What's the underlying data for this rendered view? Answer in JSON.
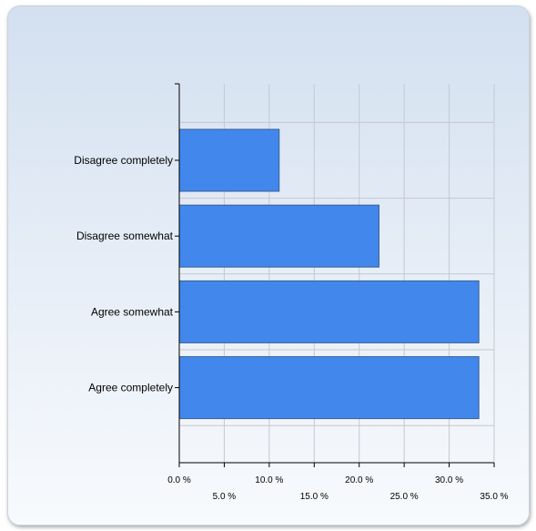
{
  "chart_data": {
    "type": "bar",
    "orientation": "horizontal",
    "categories": [
      "Disagree completely",
      "Disagree somewhat",
      "Agree somewhat",
      "Agree completely"
    ],
    "values": [
      11.1,
      22.2,
      33.3,
      33.3
    ],
    "xlim": [
      0,
      35
    ],
    "x_ticks": [
      "0.0 %",
      "5.0 %",
      "10.0 %",
      "15.0 %",
      "20.0 %",
      "25.0 %",
      "30.0 %",
      "35.0 %"
    ],
    "x_tick_values": [
      0,
      5,
      10,
      15,
      20,
      25,
      30,
      35
    ],
    "grid": true,
    "title": "",
    "xlabel": "",
    "ylabel": "",
    "bar_color": "#4287ec"
  }
}
